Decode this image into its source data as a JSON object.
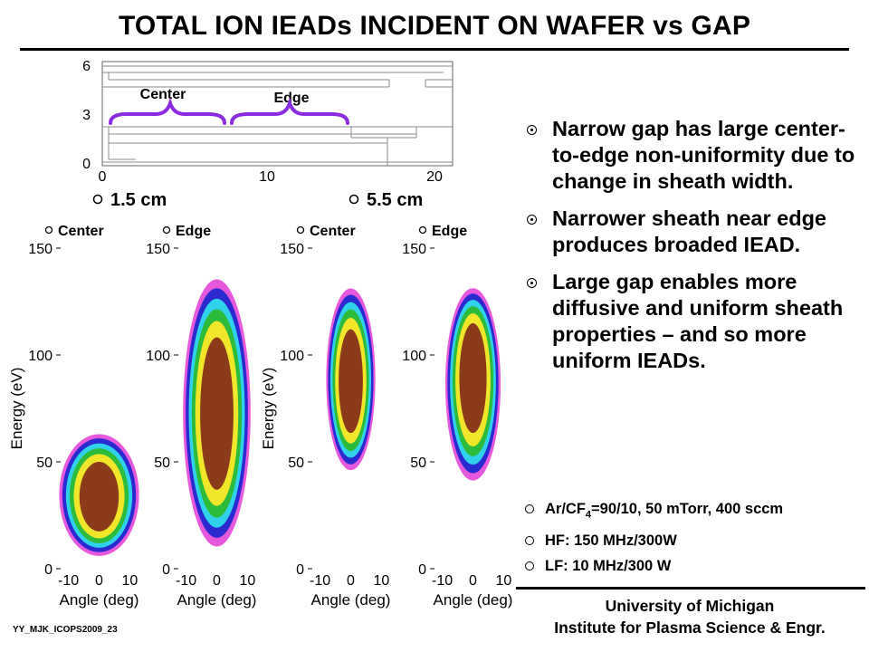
{
  "title": "TOTAL ION IEADs INCIDENT ON WAFER vs GAP",
  "geometry_plot": {
    "y_ticks": [
      "6",
      "3",
      "0"
    ],
    "x_ticks": [
      "0",
      "10",
      "20"
    ],
    "center_label": "Center",
    "edge_label": "Edge"
  },
  "gap_labels": {
    "small": "1.5 cm",
    "large": "5.5 cm"
  },
  "ieads": [
    {
      "gap": "1.5 cm",
      "label": "Center"
    },
    {
      "gap": "1.5 cm",
      "label": "Edge"
    },
    {
      "gap": "5.5 cm",
      "label": "Center"
    },
    {
      "gap": "5.5 cm",
      "label": "Edge"
    }
  ],
  "axes": {
    "ylabel": "Energy (eV)",
    "xlabel": "Angle (deg)",
    "y_ticks": [
      "150",
      "100",
      "50",
      "0"
    ],
    "x_ticks": [
      "-10",
      "0",
      "10"
    ]
  },
  "bullets": [
    "Narrow gap has large center-to-edge non-uniformity due to change in sheath width.",
    "Narrower sheath near edge produces broaded IEAD.",
    "Large gap enables more diffusive and uniform sheath properties – and so more uniform IEADs."
  ],
  "conditions": {
    "gas_prefix": "Ar/CF",
    "gas_sub": "4",
    "gas_suffix": "=90/10, 50 mTorr, 400 sccm",
    "hf": "HF: 150 MHz/300W",
    "lf": "LF: 10 MHz/300 W"
  },
  "footer": {
    "line1": "University of Michigan",
    "line2": "Institute for Plasma Science & Engr."
  },
  "slide_id": "YY_MJK_ICOPS2009_23",
  "colors": {
    "brace": "#8a2be2",
    "contour_outer": "#e23bd6",
    "contour_blue": "#2a2ad0",
    "contour_cyan": "#2fd2e8",
    "contour_green": "#2dbb3c",
    "contour_yellow": "#f0e62a",
    "contour_core": "#8b3a1a"
  },
  "chart_data": [
    {
      "type": "heatmap",
      "title": "1.5 cm Center",
      "xlabel": "Angle (deg)",
      "ylabel": "Energy (eV)",
      "xlim": [
        -14,
        14
      ],
      "ylim": [
        0,
        150
      ],
      "x_ticks": [
        -10,
        0,
        10
      ],
      "y_ticks": [
        0,
        50,
        100,
        150
      ],
      "distribution": {
        "energy_min": 5,
        "energy_max": 62,
        "energy_peak": 40,
        "angle_halfwidth": 13
      }
    },
    {
      "type": "heatmap",
      "title": "1.5 cm Edge",
      "xlabel": "Angle (deg)",
      "ylabel": "Energy (eV)",
      "xlim": [
        -14,
        14
      ],
      "ylim": [
        0,
        150
      ],
      "x_ticks": [
        -10,
        0,
        10
      ],
      "y_ticks": [
        0,
        50,
        100,
        150
      ],
      "distribution": {
        "energy_min": 10,
        "energy_max": 135,
        "energy_peak": 75,
        "angle_halfwidth": 11
      }
    },
    {
      "type": "heatmap",
      "title": "5.5 cm Center",
      "xlabel": "Angle (deg)",
      "ylabel": "Energy (eV)",
      "xlim": [
        -14,
        14
      ],
      "ylim": [
        0,
        150
      ],
      "x_ticks": [
        -10,
        0,
        10
      ],
      "y_ticks": [
        0,
        50,
        100,
        150
      ],
      "distribution": {
        "energy_min": 45,
        "energy_max": 130,
        "energy_peak": 95,
        "angle_halfwidth": 8
      }
    },
    {
      "type": "heatmap",
      "title": "5.5 cm Edge",
      "xlabel": "Angle (deg)",
      "ylabel": "Energy (eV)",
      "xlim": [
        -14,
        14
      ],
      "ylim": [
        0,
        150
      ],
      "x_ticks": [
        -10,
        0,
        10
      ],
      "y_ticks": [
        0,
        50,
        100,
        150
      ],
      "distribution": {
        "energy_min": 45,
        "energy_max": 135,
        "energy_peak": 65,
        "angle_halfwidth": 9
      }
    }
  ]
}
